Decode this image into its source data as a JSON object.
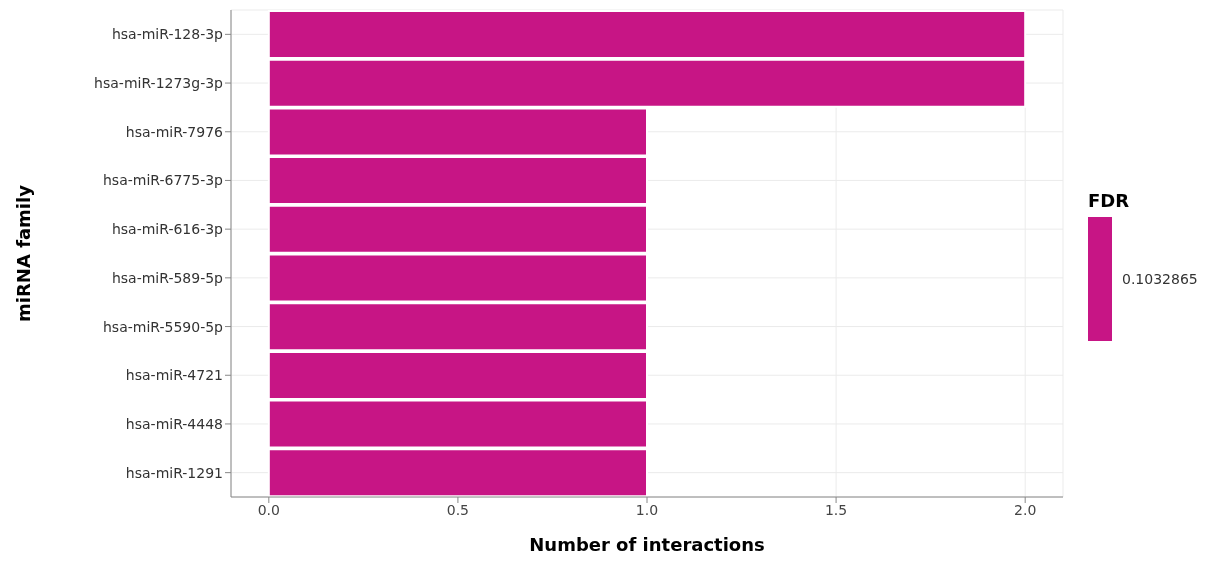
{
  "chart_data": {
    "type": "bar",
    "orientation": "horizontal",
    "xlabel": "Number of interactions",
    "ylabel": "miRNA family",
    "clabel": "FDR",
    "categories": [
      "hsa-miR-128-3p",
      "hsa-miR-1273g-3p",
      "hsa-miR-7976",
      "hsa-miR-6775-3p",
      "hsa-miR-616-3p",
      "hsa-miR-589-5p",
      "hsa-miR-5590-5p",
      "hsa-miR-4721",
      "hsa-miR-4448",
      "hsa-miR-1291"
    ],
    "values": [
      2,
      2,
      1,
      1,
      1,
      1,
      1,
      1,
      1,
      1
    ],
    "color": "#c71585",
    "xlim": [
      -0.1,
      2.1
    ],
    "xticks": [
      {
        "value": 0,
        "label": "0.0"
      },
      {
        "value": 0.5,
        "label": "0.5"
      },
      {
        "value": 1,
        "label": "1.0"
      },
      {
        "value": 1.5,
        "label": "1.5"
      },
      {
        "value": 2,
        "label": "2.0"
      }
    ],
    "annotations": [
      "0.1032865"
    ],
    "grid": true
  }
}
